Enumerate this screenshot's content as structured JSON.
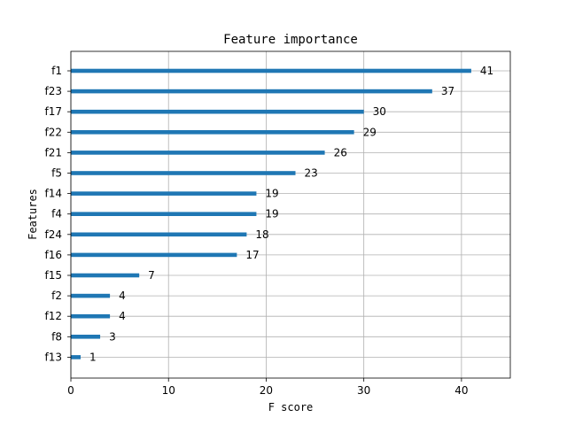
{
  "chart_data": {
    "type": "bar",
    "orientation": "horizontal",
    "title": "Feature importance",
    "xlabel": "F score",
    "ylabel": "Features",
    "xlim": [
      0,
      45
    ],
    "xticks": [
      0,
      10,
      20,
      30,
      40
    ],
    "grid": true,
    "categories": [
      "f1",
      "f23",
      "f17",
      "f22",
      "f21",
      "f5",
      "f14",
      "f4",
      "f24",
      "f16",
      "f15",
      "f2",
      "f12",
      "f8",
      "f13"
    ],
    "values": [
      41,
      37,
      30,
      29,
      26,
      23,
      19,
      19,
      18,
      17,
      7,
      4,
      4,
      3,
      1
    ],
    "bar_color": "#1f77b4"
  }
}
